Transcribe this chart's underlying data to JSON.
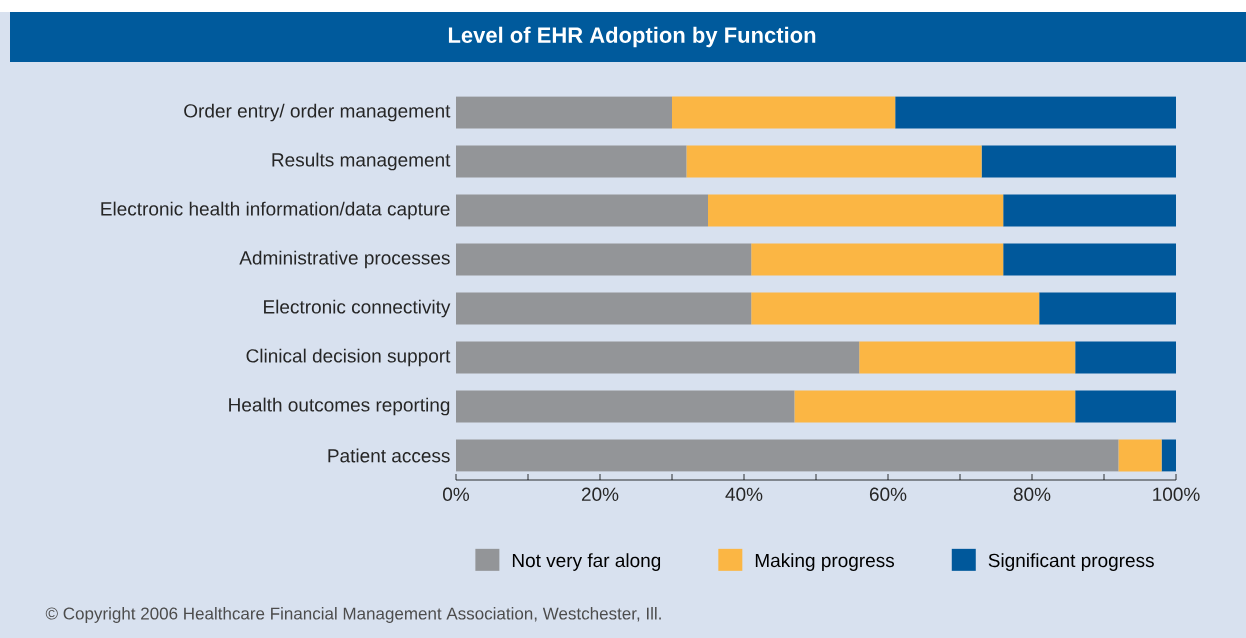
{
  "chart_data": {
    "type": "bar",
    "orientation": "horizontal",
    "stacked": true,
    "title": "Level of EHR Adoption by Function",
    "categories": [
      "Order entry/ order management",
      "Results management",
      "Electronic health information/data capture",
      "Administrative processes",
      "Electronic connectivity",
      "Clinical decision support",
      "Health outcomes reporting",
      "Patient access"
    ],
    "series": [
      {
        "name": "Not very far along",
        "color": "#939598",
        "values": [
          30,
          32,
          35,
          41,
          41,
          56,
          47,
          92
        ]
      },
      {
        "name": "Making progress",
        "color": "#fbb644",
        "values": [
          31,
          41,
          41,
          35,
          40,
          30,
          39,
          6
        ]
      },
      {
        "name": "Significant progress",
        "color": "#00589b",
        "values": [
          39,
          27,
          24,
          24,
          19,
          14,
          14,
          2
        ]
      }
    ],
    "xlim": [
      0,
      100
    ],
    "xticks": [
      {
        "value": 0,
        "label": "0%"
      },
      {
        "value": 10,
        "label": null
      },
      {
        "value": 20,
        "label": "20%"
      },
      {
        "value": 30,
        "label": null
      },
      {
        "value": 40,
        "label": "40%"
      },
      {
        "value": 50,
        "label": null
      },
      {
        "value": 60,
        "label": "60%"
      },
      {
        "value": 70,
        "label": null
      },
      {
        "value": 80,
        "label": "80%"
      },
      {
        "value": 90,
        "label": null
      },
      {
        "value": 100,
        "label": "100%"
      }
    ],
    "legend": "bottom",
    "annotations": [
      "© Copyright 2006 Healthcare Financial Management Association, Westchester, Ill."
    ]
  }
}
